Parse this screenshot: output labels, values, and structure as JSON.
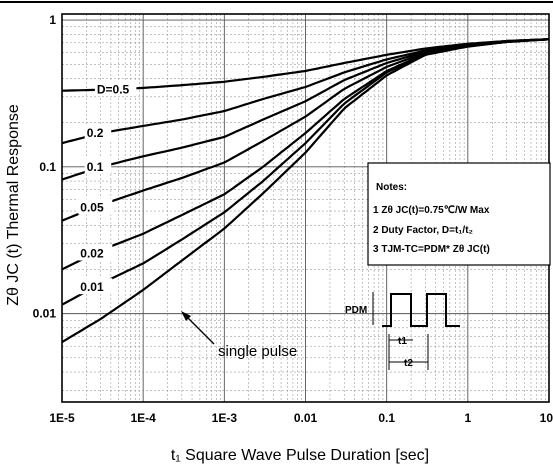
{
  "chart_data": {
    "type": "line",
    "title": "",
    "xlabel": "t₁ Square Wave Pulse Duration [sec]",
    "ylabel": "Zθ JC (t) Thermal Response",
    "x_scale": "log",
    "y_scale": "log",
    "xlim": [
      1e-05,
      10
    ],
    "ylim": [
      0.0025,
      1.1
    ],
    "grid": true,
    "x_ticks": [
      {
        "value": 1e-05,
        "label": "1E-5"
      },
      {
        "value": 0.0001,
        "label": "1E-4"
      },
      {
        "value": 0.001,
        "label": "1E-3"
      },
      {
        "value": 0.01,
        "label": "0.01"
      },
      {
        "value": 0.1,
        "label": "0.1"
      },
      {
        "value": 1,
        "label": "1"
      },
      {
        "value": 10,
        "label": "10"
      }
    ],
    "y_ticks": [
      {
        "value": 0.01,
        "label": "0.01"
      },
      {
        "value": 0.1,
        "label": "0.1"
      },
      {
        "value": 1,
        "label": "1"
      }
    ],
    "x": [
      1e-05,
      3e-05,
      0.0001,
      0.0003,
      0.001,
      0.003,
      0.01,
      0.03,
      0.1,
      0.3,
      1,
      3,
      10
    ],
    "series": [
      {
        "name": "D=0.5",
        "label_x": 4e-05,
        "values": [
          0.33,
          0.335,
          0.345,
          0.36,
          0.38,
          0.41,
          0.45,
          0.51,
          0.58,
          0.64,
          0.69,
          0.72,
          0.74
        ]
      },
      {
        "name": "0.2",
        "label_x": 3e-05,
        "values": [
          0.145,
          0.17,
          0.19,
          0.21,
          0.24,
          0.29,
          0.35,
          0.44,
          0.54,
          0.62,
          0.68,
          0.72,
          0.74
        ]
      },
      {
        "name": "0.1",
        "label_x": 3e-05,
        "values": [
          0.082,
          0.1,
          0.118,
          0.135,
          0.16,
          0.21,
          0.28,
          0.39,
          0.51,
          0.61,
          0.67,
          0.715,
          0.74
        ]
      },
      {
        "name": "0.05",
        "label_x": 2.5e-05,
        "values": [
          0.043,
          0.055,
          0.069,
          0.084,
          0.107,
          0.15,
          0.22,
          0.34,
          0.48,
          0.6,
          0.67,
          0.715,
          0.74
        ]
      },
      {
        "name": "0.02",
        "label_x": 2.5e-05,
        "values": [
          0.02,
          0.027,
          0.035,
          0.047,
          0.065,
          0.1,
          0.17,
          0.29,
          0.45,
          0.59,
          0.665,
          0.71,
          0.74
        ]
      },
      {
        "name": "0.01",
        "label_x": 2.5e-05,
        "values": [
          0.0115,
          0.016,
          0.022,
          0.032,
          0.049,
          0.08,
          0.145,
          0.27,
          0.44,
          0.585,
          0.665,
          0.71,
          0.74
        ]
      },
      {
        "name": "single pulse",
        "label_x": null,
        "values": [
          0.0064,
          0.0092,
          0.0145,
          0.023,
          0.038,
          0.066,
          0.125,
          0.25,
          0.42,
          0.58,
          0.66,
          0.71,
          0.74
        ]
      }
    ],
    "annotations": {
      "single_pulse": "single pulse",
      "notes_title": "Notes:",
      "note_1": "1 Zθ JC(t)=0.75℃/W Max",
      "note_2": "2 Duty Factor, D=t₁/t₂",
      "note_3": "3 TJM-TC=PDM* Zθ JC(t)",
      "pdm_label": "PDM",
      "t1_label": "t1",
      "t2_label": "t2"
    }
  }
}
